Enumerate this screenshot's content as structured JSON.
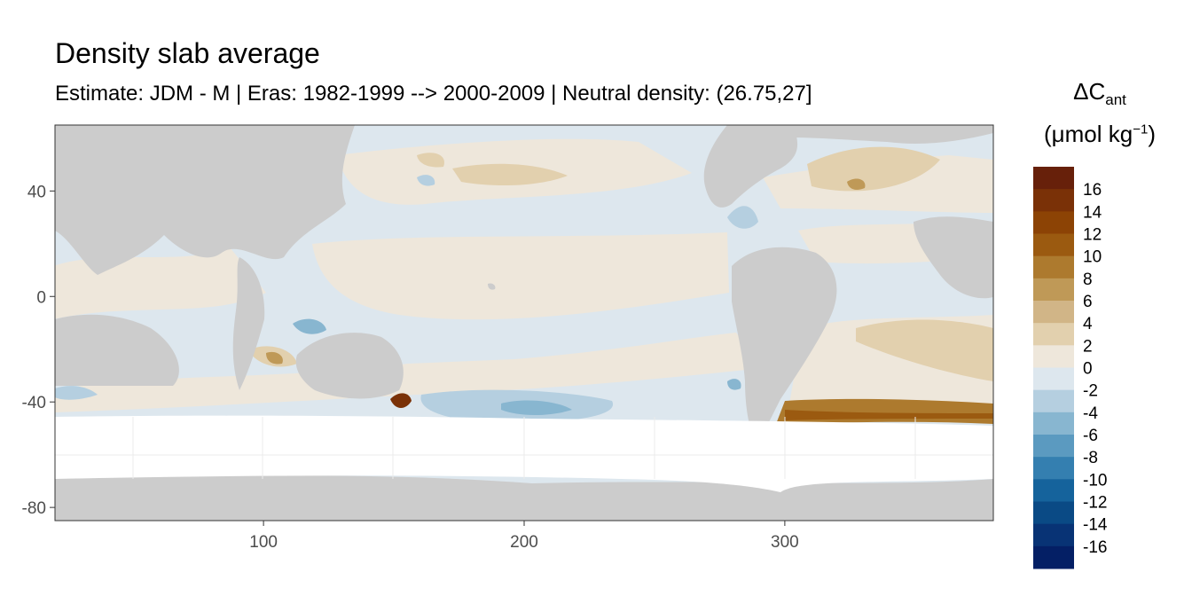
{
  "title": "Density slab average",
  "subtitle": "Estimate: JDM - M | Eras: 1982-1999 --> 2000-2009 | Neutral density: (26.75,27]",
  "legend": {
    "title_symbol": "ΔC",
    "title_subscript": "ant",
    "unit_prefix": "(μmol kg",
    "unit_superscript": "−1",
    "unit_suffix": ")",
    "labels": [
      "16",
      "14",
      "12",
      "10",
      "8",
      "6",
      "4",
      "2",
      "0",
      "-2",
      "-4",
      "-6",
      "-8",
      "-10",
      "-12",
      "-14",
      "-16"
    ],
    "colors": [
      "#67200a",
      "#7a3107",
      "#8c4305",
      "#9b5a10",
      "#ad7a2e",
      "#bf9957",
      "#d1b587",
      "#e2d0ae",
      "#eee7db",
      "#dde7ee",
      "#b5cfe0",
      "#88b6d0",
      "#5b9ac0",
      "#347fb0",
      "#15639c",
      "#0a4a85",
      "#083375",
      "#041f65"
    ]
  },
  "chart_data": {
    "type": "heatmap",
    "title": "Density slab average",
    "subtitle": "Estimate: JDM - M | Eras: 1982-1999 --> 2000-2009 | Neutral density: (26.75,27]",
    "xlabel": "",
    "ylabel": "",
    "xlim": [
      20,
      380
    ],
    "ylim": [
      -85,
      65
    ],
    "x_ticks": [
      100,
      200,
      300
    ],
    "y_ticks": [
      40,
      0,
      -40,
      -80
    ],
    "grid": true,
    "legend_placement": "right",
    "color_scale": "brown-blue diverging",
    "land_color": "#cccccc",
    "nodata_color": "#ffffff"
  }
}
